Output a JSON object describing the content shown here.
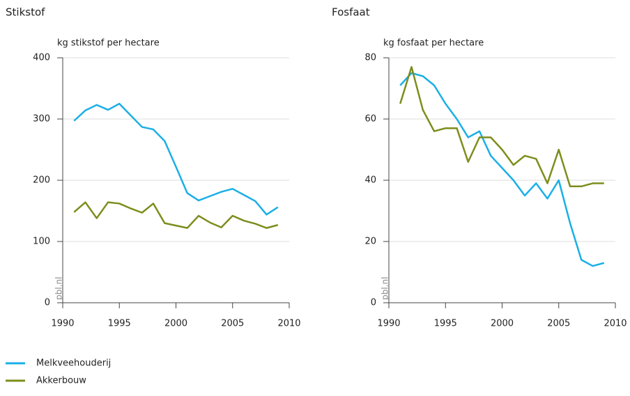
{
  "chart_data": [
    {
      "type": "line",
      "title": "Stikstof",
      "ylabel": "kg stikstof per hectare",
      "watermark": "pbl.nl",
      "x": [
        1991,
        1992,
        1993,
        1994,
        1995,
        1996,
        1997,
        1998,
        1999,
        2000,
        2001,
        2002,
        2003,
        2004,
        2005,
        2006,
        2007,
        2008,
        2009
      ],
      "series": [
        {
          "name": "Melkveehouderij",
          "color": "#1aafe6",
          "values": [
            297,
            314,
            323,
            315,
            325,
            306,
            287,
            283,
            264,
            222,
            179,
            167,
            174,
            181,
            186,
            176,
            166,
            144,
            156
          ]
        },
        {
          "name": "Akkerbouw",
          "color": "#7d8d1c",
          "values": [
            148,
            164,
            138,
            164,
            162,
            154,
            147,
            162,
            130,
            126,
            122,
            142,
            131,
            123,
            142,
            134,
            129,
            122,
            127
          ]
        }
      ],
      "xlim": [
        1990,
        2010
      ],
      "xticks": [
        1990,
        1995,
        2000,
        2005,
        2010
      ],
      "ylim": [
        0,
        400
      ],
      "yticks": [
        0,
        100,
        200,
        300,
        400
      ],
      "grid": true
    },
    {
      "type": "line",
      "title": "Fosfaat",
      "ylabel": "kg fosfaat per hectare",
      "watermark": "pbl.nl",
      "x": [
        1991,
        1992,
        1993,
        1994,
        1995,
        1996,
        1997,
        1998,
        1999,
        2000,
        2001,
        2002,
        2003,
        2004,
        2005,
        2006,
        2007,
        2008,
        2009
      ],
      "series": [
        {
          "name": "Melkveehouderij",
          "color": "#1aafe6",
          "values": [
            71,
            75,
            74,
            71,
            65,
            60,
            54,
            56,
            48,
            44,
            40,
            35,
            39,
            34,
            40,
            26,
            14,
            12,
            13
          ]
        },
        {
          "name": "Akkerbouw",
          "color": "#7d8d1c",
          "values": [
            65,
            77,
            63,
            56,
            57,
            57,
            46,
            54,
            54,
            50,
            45,
            48,
            47,
            39,
            50,
            38,
            38,
            39,
            39
          ]
        }
      ],
      "xlim": [
        1990,
        2010
      ],
      "xticks": [
        1990,
        1995,
        2000,
        2005,
        2010
      ],
      "ylim": [
        0,
        80
      ],
      "yticks": [
        0,
        20,
        40,
        60,
        80
      ],
      "grid": true
    }
  ]
}
